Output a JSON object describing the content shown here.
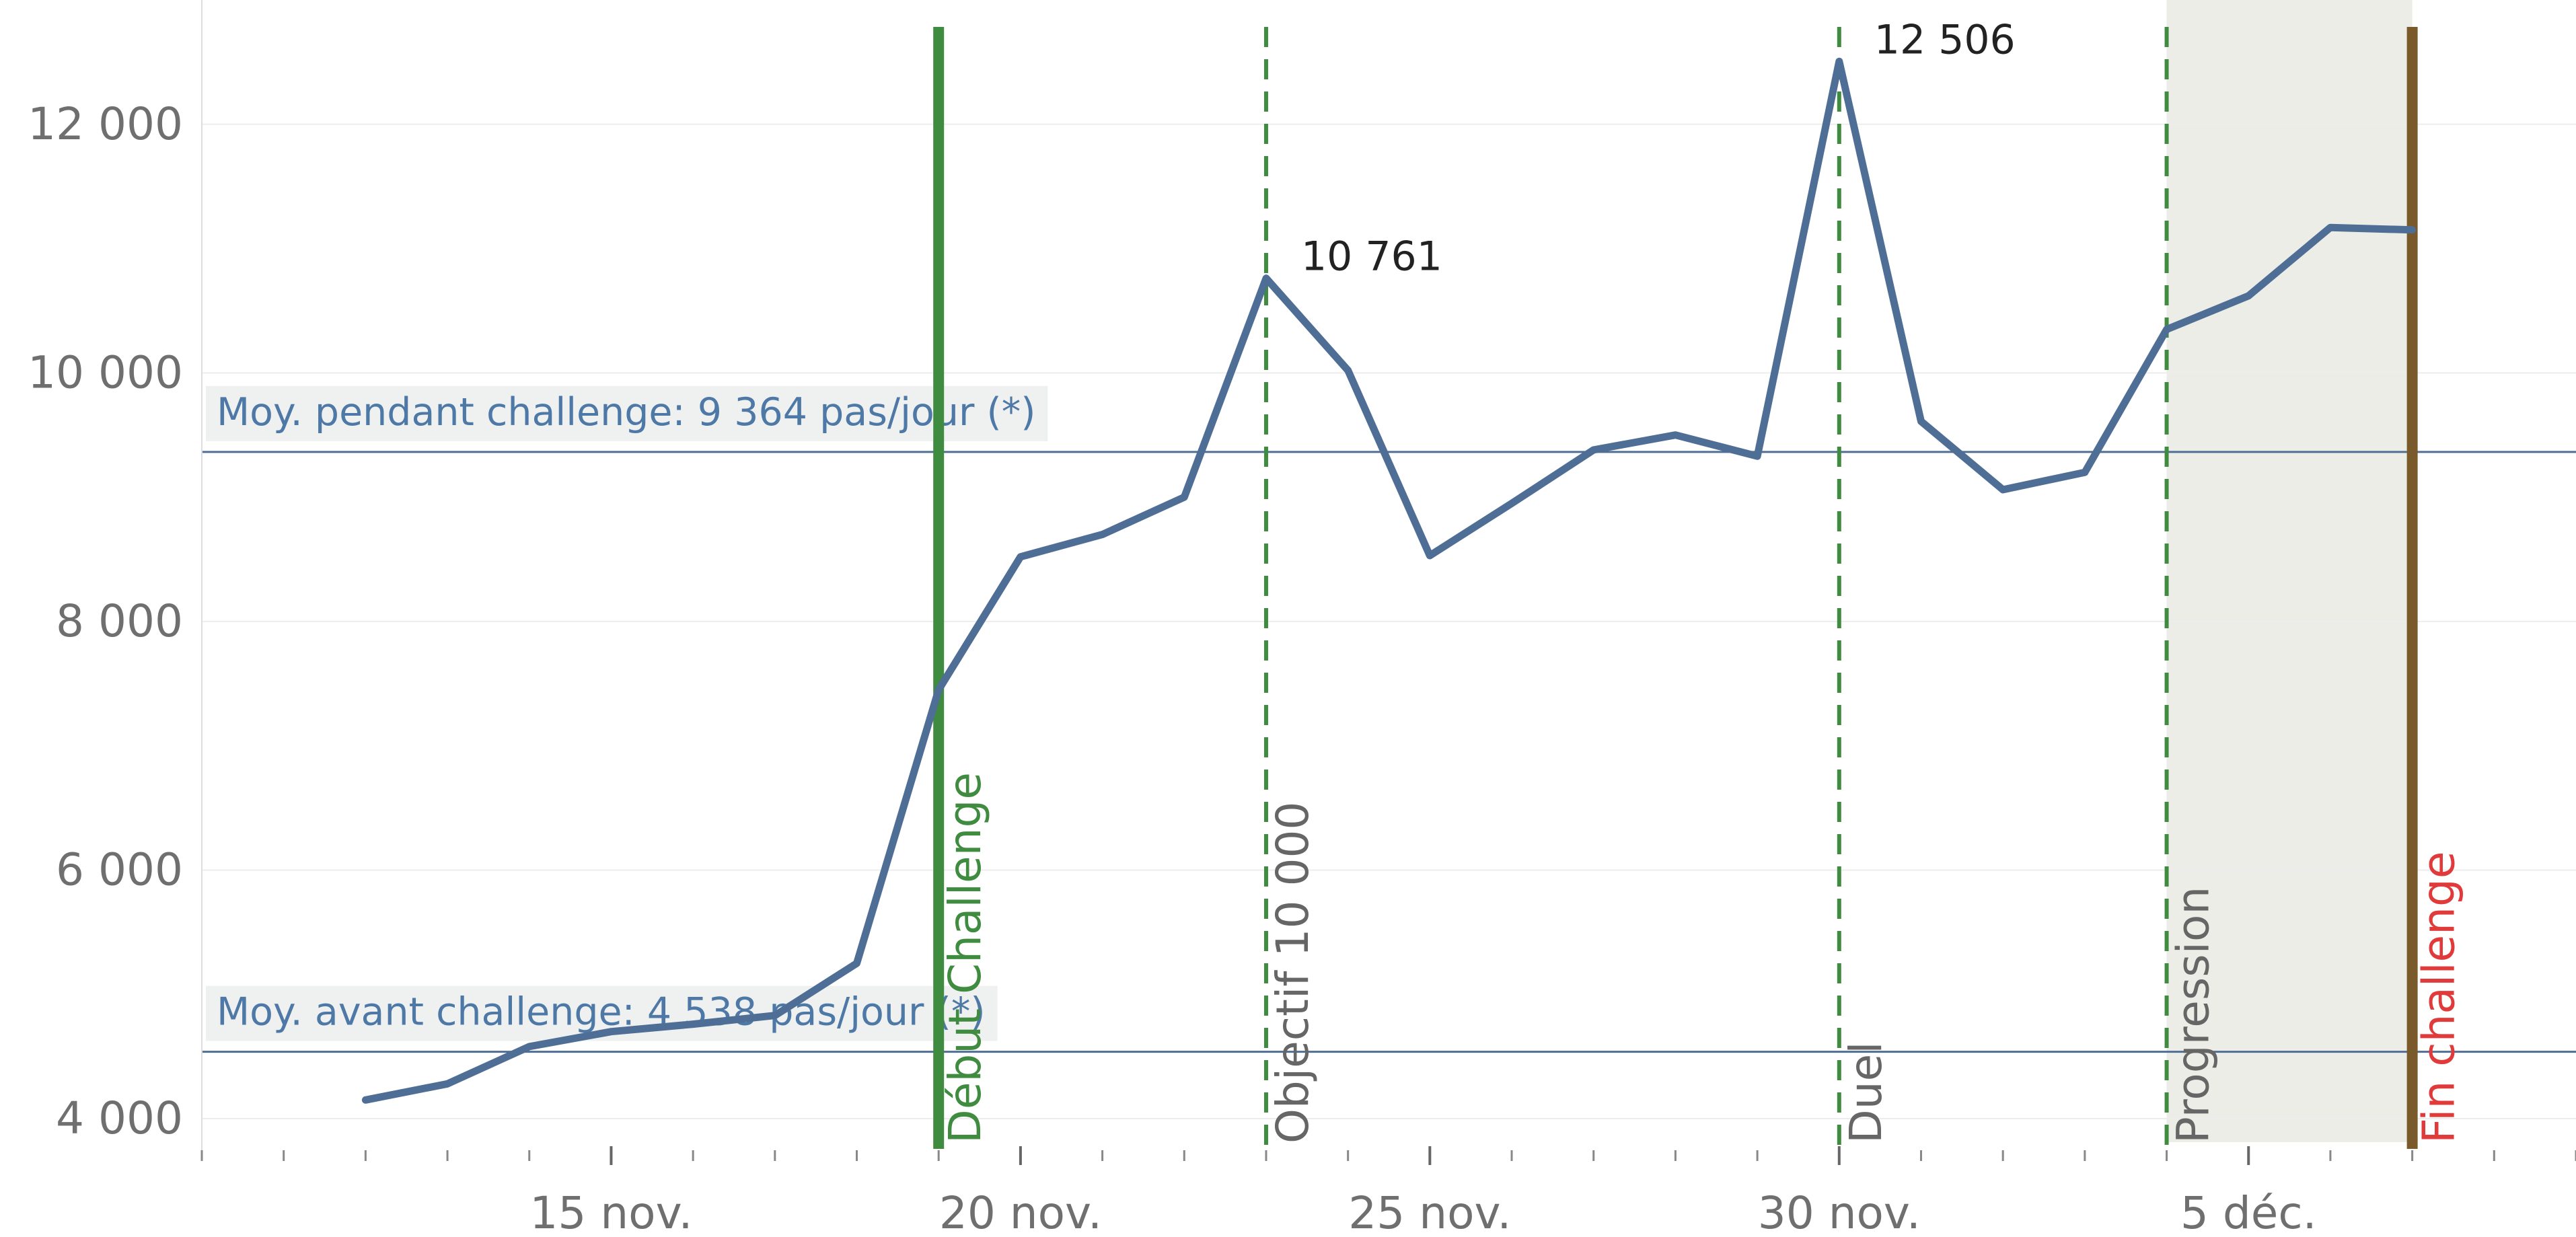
{
  "chart_data": {
    "type": "line",
    "ylim": [
      3800,
      13000
    ],
    "y_ticks": [
      {
        "value": 4000,
        "label": "4 000"
      },
      {
        "value": 6000,
        "label": "6 000"
      },
      {
        "value": 8000,
        "label": "8 000"
      },
      {
        "value": 10000,
        "label": "10 000"
      },
      {
        "value": 12000,
        "label": "12 000"
      }
    ],
    "x_range": [
      "2020-11-10",
      "2020-12-09"
    ],
    "x_ticks": [
      {
        "date": "2020-11-15",
        "label": "15 nov."
      },
      {
        "date": "2020-11-20",
        "label": "20 nov."
      },
      {
        "date": "2020-11-25",
        "label": "25 nov."
      },
      {
        "date": "2020-11-30",
        "label": "30 nov."
      },
      {
        "date": "2020-12-05",
        "label": "5 déc."
      }
    ],
    "grid": true,
    "series": [
      {
        "color": "#4e6e96",
        "points": [
          {
            "x": "2020-11-12",
            "y": 4150
          },
          {
            "x": "2020-11-13",
            "y": 4280
          },
          {
            "x": "2020-11-14",
            "y": 4580
          },
          {
            "x": "2020-11-15",
            "y": 4700
          },
          {
            "x": "2020-11-16",
            "y": 4760
          },
          {
            "x": "2020-11-17",
            "y": 4830
          },
          {
            "x": "2020-11-18",
            "y": 5250
          },
          {
            "x": "2020-11-19",
            "y": 7450
          },
          {
            "x": "2020-11-20",
            "y": 8520
          },
          {
            "x": "2020-11-21",
            "y": 8700
          },
          {
            "x": "2020-11-22",
            "y": 9000
          },
          {
            "x": "2020-11-23",
            "y": 10761
          },
          {
            "x": "2020-11-24",
            "y": 10020
          },
          {
            "x": "2020-11-25",
            "y": 8530
          },
          {
            "x": "2020-11-26",
            "y": 8950
          },
          {
            "x": "2020-11-27",
            "y": 9380
          },
          {
            "x": "2020-11-28",
            "y": 9500
          },
          {
            "x": "2020-11-29",
            "y": 9330
          },
          {
            "x": "2020-11-30",
            "y": 12506
          },
          {
            "x": "2020-12-01",
            "y": 9610
          },
          {
            "x": "2020-12-02",
            "y": 9060
          },
          {
            "x": "2020-12-03",
            "y": 9200
          },
          {
            "x": "2020-12-04",
            "y": 10350
          },
          {
            "x": "2020-12-05",
            "y": 10620
          },
          {
            "x": "2020-12-06",
            "y": 11170
          },
          {
            "x": "2020-12-07",
            "y": 11150
          }
        ]
      }
    ],
    "data_labels": [
      {
        "x": "2020-11-23",
        "y": 10761,
        "text": "10 761"
      },
      {
        "x": "2020-11-30",
        "y": 12506,
        "text": "12 506"
      }
    ],
    "reference_lines": [
      {
        "y": 9364,
        "label": "Moy. pendant challenge: 9 364 pas/jour (*)",
        "color": "#4e6e96"
      },
      {
        "y": 4538,
        "label": "Moy. avant challenge: 4 538 pas/jour (*)",
        "color": "#4e6e96"
      }
    ],
    "shaded_band": {
      "from": "2020-12-04",
      "to": "2020-12-07",
      "color": "#ecede6"
    },
    "event_lines": [
      {
        "date": "2020-11-19",
        "label": "Début Challenge",
        "style": "solid",
        "color": "#3f8b3f",
        "label_color": "#3f8b3f"
      },
      {
        "date": "2020-11-23",
        "label": "Objectif 10 000",
        "style": "dashed",
        "color": "#3f8b3f",
        "label_color": "#666666"
      },
      {
        "date": "2020-11-30",
        "label": "Duel",
        "style": "dashed",
        "color": "#3f8b3f",
        "label_color": "#666666"
      },
      {
        "date": "2020-12-04",
        "label": "Progression",
        "style": "dashed",
        "color": "#3f8b3f",
        "label_color": "#666666"
      },
      {
        "date": "2020-12-07",
        "label": "Fin challenge",
        "style": "solid",
        "color": "#7a5a2a",
        "label_color": "#e03a3a"
      }
    ]
  }
}
